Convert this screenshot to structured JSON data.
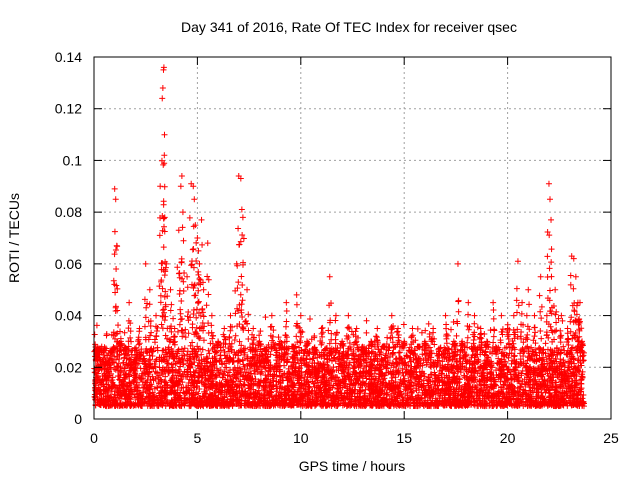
{
  "chart_data": {
    "type": "scatter",
    "title": "Day 341 of 2016, Rate Of TEC Index for receiver qsec",
    "xlabel": "GPS time / hours",
    "ylabel": "ROTI / TECUs",
    "xlim": [
      0,
      25
    ],
    "ylim": [
      0,
      0.14
    ],
    "xticks": [
      0,
      5,
      10,
      15,
      20,
      25
    ],
    "xtick_labels": [
      "0",
      "5",
      "10",
      "15",
      "20",
      "25"
    ],
    "yticks": [
      0,
      0.02,
      0.04,
      0.06,
      0.08,
      0.1,
      0.12,
      0.14
    ],
    "ytick_labels": [
      "0",
      "0.02",
      "0.04",
      "0.06",
      "0.08",
      "0.1",
      "0.12",
      "0.14"
    ],
    "grid": true,
    "marker": "+",
    "color": "#ff0000",
    "series": [
      {
        "name": "ROTI",
        "x": [
          0.05,
          0.1,
          0.2,
          0.3,
          0.5,
          0.7,
          0.9,
          1.0,
          1.05,
          1.1,
          1.3,
          1.5,
          1.7,
          2.0,
          2.2,
          2.5,
          2.7,
          3.0,
          3.2,
          3.3,
          3.33,
          3.36,
          3.38,
          3.4,
          3.42,
          3.5,
          3.7,
          3.9,
          4.1,
          4.2,
          4.25,
          4.3,
          4.5,
          4.7,
          4.8,
          4.85,
          4.9,
          5.0,
          5.05,
          5.1,
          5.2,
          5.3,
          5.5,
          5.7,
          6.0,
          6.3,
          6.6,
          6.9,
          7.0,
          7.1,
          7.15,
          7.2,
          7.4,
          7.7,
          8.0,
          8.3,
          8.6,
          9.0,
          9.3,
          9.6,
          9.8,
          10.0,
          10.3,
          10.7,
          11.0,
          11.4,
          11.7,
          12.0,
          12.3,
          12.7,
          13.0,
          13.4,
          13.7,
          14.0,
          14.4,
          14.7,
          15.0,
          15.4,
          15.7,
          16.0,
          16.4,
          16.7,
          17.0,
          17.4,
          17.6,
          17.8,
          18.1,
          18.4,
          18.7,
          19.0,
          19.3,
          19.7,
          20.0,
          20.3,
          20.5,
          20.7,
          21.0,
          21.3,
          21.6,
          21.9,
          22.0,
          22.05,
          22.1,
          22.3,
          22.6,
          22.9,
          23.1,
          23.2,
          23.3,
          23.4,
          23.5,
          23.6
        ],
        "y": [
          0.012,
          0.018,
          0.025,
          0.015,
          0.02,
          0.016,
          0.022,
          0.089,
          0.085,
          0.067,
          0.03,
          0.025,
          0.045,
          0.02,
          0.035,
          0.06,
          0.05,
          0.04,
          0.09,
          0.124,
          0.128,
          0.135,
          0.136,
          0.102,
          0.078,
          0.06,
          0.05,
          0.035,
          0.073,
          0.09,
          0.094,
          0.08,
          0.055,
          0.091,
          0.09,
          0.085,
          0.075,
          0.07,
          0.065,
          0.06,
          0.077,
          0.05,
          0.068,
          0.04,
          0.03,
          0.035,
          0.04,
          0.06,
          0.094,
          0.093,
          0.081,
          0.078,
          0.05,
          0.035,
          0.03,
          0.025,
          0.04,
          0.03,
          0.045,
          0.028,
          0.048,
          0.04,
          0.03,
          0.025,
          0.035,
          0.055,
          0.04,
          0.03,
          0.04,
          0.035,
          0.025,
          0.03,
          0.035,
          0.028,
          0.04,
          0.035,
          0.03,
          0.035,
          0.028,
          0.03,
          0.035,
          0.025,
          0.04,
          0.03,
          0.06,
          0.03,
          0.045,
          0.04,
          0.035,
          0.03,
          0.045,
          0.04,
          0.035,
          0.04,
          0.061,
          0.045,
          0.05,
          0.04,
          0.055,
          0.04,
          0.091,
          0.085,
          0.077,
          0.05,
          0.04,
          0.035,
          0.063,
          0.062,
          0.055,
          0.045,
          0.045,
          0.03
        ]
      }
    ],
    "background_band": {
      "description": "dense cloud of points",
      "y_low": 0.005,
      "y_high": 0.028
    }
  }
}
